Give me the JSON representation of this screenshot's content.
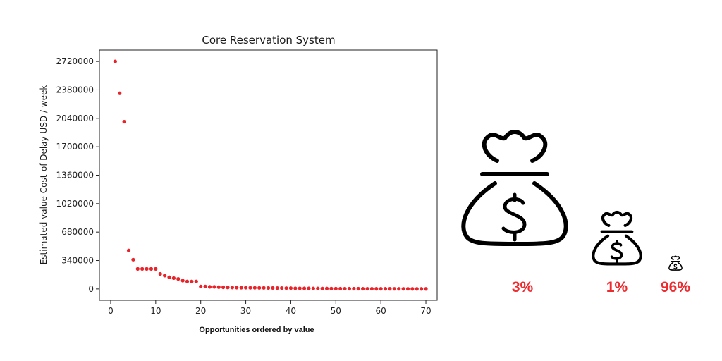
{
  "chart_data": {
    "type": "scatter",
    "title": "Core Reservation System",
    "xlabel": "Opportunities ordered by value",
    "ylabel": "Estimated value Cost-of-Delay USD / week",
    "xlim": [
      -2.5,
      72.5
    ],
    "ylim": [
      -136000,
      2856000
    ],
    "x_ticks": [
      "0",
      "10",
      "20",
      "30",
      "40",
      "50",
      "60",
      "70"
    ],
    "y_ticks": [
      "0",
      "340000",
      "680000",
      "1020000",
      "1360000",
      "1700000",
      "2040000",
      "2380000",
      "2720000"
    ],
    "grid": false,
    "marker_color": "#e8242a",
    "x": [
      1,
      2,
      3,
      4,
      5,
      6,
      7,
      8,
      9,
      10,
      11,
      12,
      13,
      14,
      15,
      16,
      17,
      18,
      19,
      20,
      21,
      22,
      23,
      24,
      25,
      26,
      27,
      28,
      29,
      30,
      31,
      32,
      33,
      34,
      35,
      36,
      37,
      38,
      39,
      40,
      41,
      42,
      43,
      44,
      45,
      46,
      47,
      48,
      49,
      50,
      51,
      52,
      53,
      54,
      55,
      56,
      57,
      58,
      59,
      60,
      61,
      62,
      63,
      64,
      65,
      66,
      67,
      68,
      69,
      70
    ],
    "values": [
      2720000,
      2340000,
      2000000,
      460000,
      350000,
      240000,
      240000,
      240000,
      240000,
      240000,
      180000,
      160000,
      140000,
      130000,
      120000,
      100000,
      90000,
      90000,
      90000,
      30000,
      30000,
      25000,
      25000,
      22000,
      20000,
      18000,
      17000,
      16000,
      15000,
      15000,
      14000,
      14000,
      13000,
      13000,
      12000,
      12000,
      11000,
      11000,
      10000,
      10000,
      8000,
      8000,
      7000,
      7000,
      6000,
      6000,
      5000,
      5000,
      4000,
      4000,
      3500,
      3500,
      3000,
      3000,
      3000,
      2500,
      2500,
      2500,
      2000,
      2000,
      2000,
      2000,
      1500,
      1500,
      1500,
      1500,
      1000,
      1000,
      1000,
      1000
    ]
  },
  "bags": [
    {
      "percent": "3%"
    },
    {
      "percent": "1%"
    },
    {
      "percent": "96%"
    }
  ],
  "accent_color": "#ee2a2f",
  "icons": [
    "money-bag-icon",
    "dollar-sign-icon"
  ]
}
